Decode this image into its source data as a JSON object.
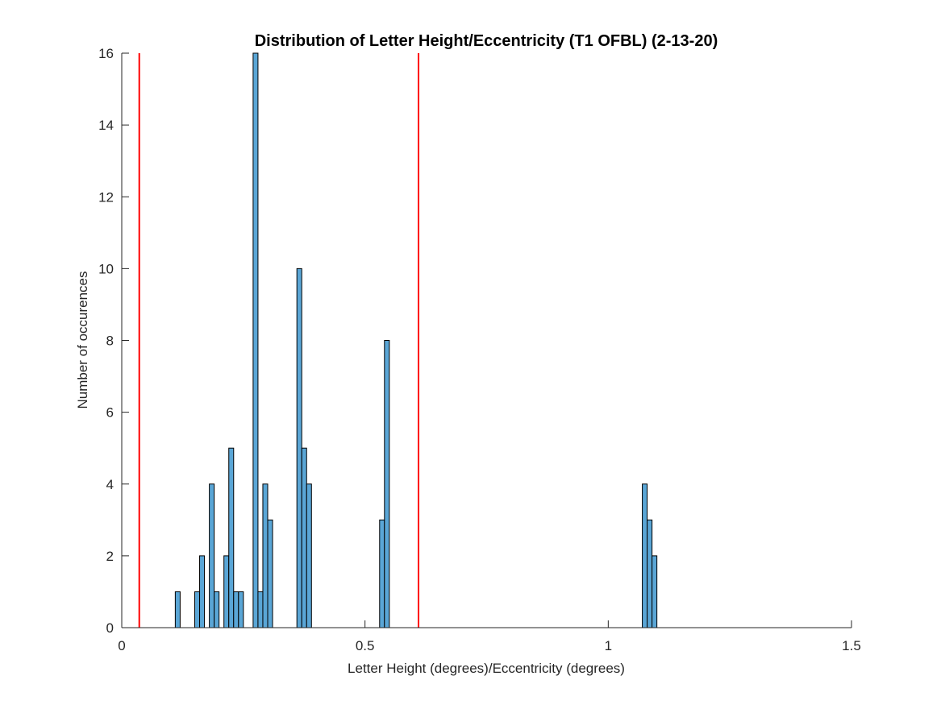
{
  "chart_data": {
    "type": "bar",
    "title": "Distribution of Letter Height/Eccentricity (T1 OFBL) (2-13-20)",
    "xlabel": "Letter Height (degrees)/Eccentricity (degrees)",
    "ylabel": "Number of occurences",
    "xlim": [
      0,
      1.5
    ],
    "ylim": [
      0,
      16
    ],
    "xticks": [
      0,
      0.5,
      1,
      1.5
    ],
    "xtick_labels": [
      "0",
      "0.5",
      "1",
      "1.5"
    ],
    "yticks": [
      0,
      2,
      4,
      6,
      8,
      10,
      12,
      14,
      16
    ],
    "ytick_labels": [
      "0",
      "2",
      "4",
      "6",
      "8",
      "10",
      "12",
      "14",
      "16"
    ],
    "bin_width": 0.01,
    "bins": [
      {
        "x": 0.115,
        "count": 1
      },
      {
        "x": 0.155,
        "count": 1
      },
      {
        "x": 0.165,
        "count": 2
      },
      {
        "x": 0.185,
        "count": 4
      },
      {
        "x": 0.195,
        "count": 1
      },
      {
        "x": 0.215,
        "count": 2
      },
      {
        "x": 0.225,
        "count": 5
      },
      {
        "x": 0.235,
        "count": 1
      },
      {
        "x": 0.245,
        "count": 1
      },
      {
        "x": 0.275,
        "count": 16
      },
      {
        "x": 0.285,
        "count": 1
      },
      {
        "x": 0.295,
        "count": 4
      },
      {
        "x": 0.305,
        "count": 3
      },
      {
        "x": 0.365,
        "count": 10
      },
      {
        "x": 0.375,
        "count": 5
      },
      {
        "x": 0.385,
        "count": 4
      },
      {
        "x": 0.535,
        "count": 3
      },
      {
        "x": 0.545,
        "count": 8
      },
      {
        "x": 1.075,
        "count": 4
      },
      {
        "x": 1.085,
        "count": 3
      },
      {
        "x": 1.095,
        "count": 2
      }
    ],
    "reference_lines": [
      {
        "x": 0.036,
        "color": "#ff0000"
      },
      {
        "x": 0.61,
        "color": "#ff0000"
      }
    ],
    "bar_color": "#5aa6d6",
    "grid": false,
    "legend": "none"
  }
}
